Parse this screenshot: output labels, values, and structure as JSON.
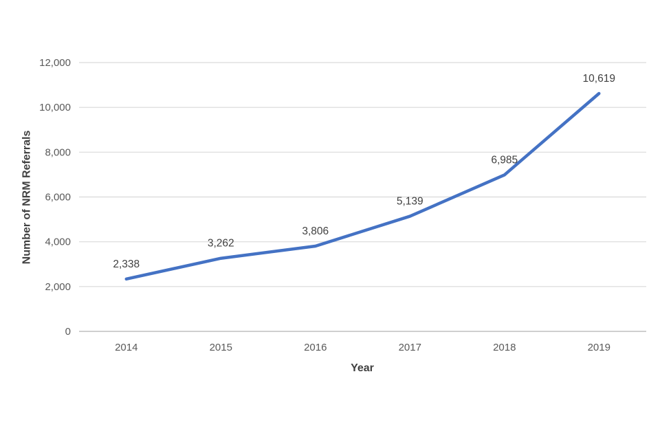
{
  "chart_data": {
    "type": "line",
    "categories": [
      "2014",
      "2015",
      "2016",
      "2017",
      "2018",
      "2019"
    ],
    "series": [
      {
        "name": "NRM Referrals",
        "values": [
          2338,
          3262,
          3806,
          5139,
          6985,
          10619
        ],
        "data_labels": [
          "2,338",
          "3,262",
          "3,806",
          "5,139",
          "6,985",
          "10,619"
        ],
        "color": "#4472C4"
      }
    ],
    "xlabel": "Year",
    "ylabel": "Number of NRM Referrals",
    "ylim": [
      0,
      12000
    ],
    "ytick_interval": 2000,
    "ytick_labels": [
      "0",
      "2,000",
      "4,000",
      "6,000",
      "8,000",
      "10,000",
      "12,000"
    ],
    "grid": true,
    "legend": "none",
    "colors": {
      "line": "#4472C4",
      "gridline": "#D9D9D9",
      "axis_line": "#BFBFBF",
      "tick_label": "#595959",
      "data_label": "#404040",
      "axis_title": "#404040",
      "background": "#FFFFFF"
    }
  }
}
